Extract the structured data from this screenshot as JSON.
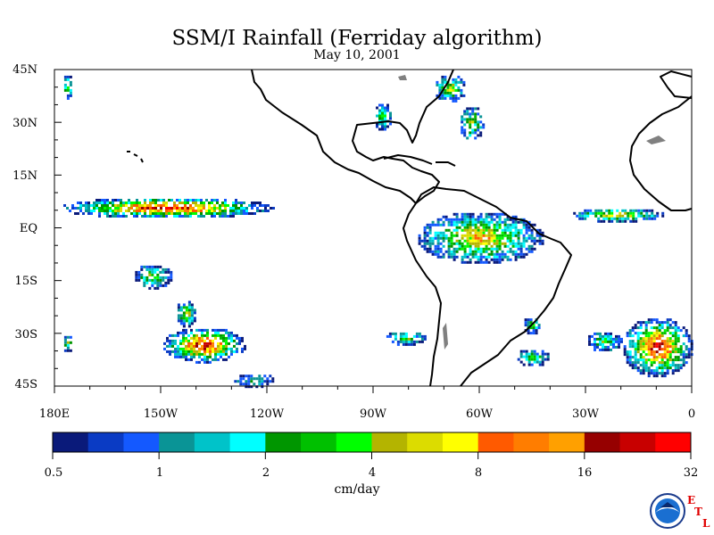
{
  "title": "SSM/I Rainfall (Ferriday algorithm)",
  "subtitle": "May 10, 2001",
  "chart_data": {
    "type": "heatmap",
    "title": "SSM/I Rainfall (Ferriday algorithm)",
    "subtitle": "May 10, 2001",
    "xlim": [
      -180,
      0
    ],
    "ylim": [
      -45,
      45
    ],
    "lat_ticks": [
      "45N",
      "30N",
      "15N",
      "EQ",
      "15S",
      "30S",
      "45S"
    ],
    "lon_ticks": [
      "180E",
      "150W",
      "120W",
      "90W",
      "60W",
      "30W",
      "0"
    ],
    "colorbar": {
      "units": "cm/day",
      "tick_labels": [
        "0.5",
        "1",
        "2",
        "4",
        "8",
        "16",
        "32"
      ],
      "colors": [
        "#0a1a7a",
        "#0a3bc4",
        "#1459ff",
        "#0a9496",
        "#00c3c9",
        "#00ffff",
        "#009600",
        "#00c000",
        "#00ff00",
        "#b4b400",
        "#dcdc00",
        "#ffff00",
        "#ff5a00",
        "#ff7d00",
        "#ffa000",
        "#960000",
        "#c80000",
        "#ff0000"
      ]
    },
    "rain_regions": [
      {
        "lon_min": -179,
        "lon_max": -118,
        "lat_min": 3,
        "lat_max": 9,
        "peak": 17
      },
      {
        "lon_min": -178,
        "lon_max": -175,
        "lat_min": 37,
        "lat_max": 44,
        "peak": 10
      },
      {
        "lon_min": -158,
        "lon_max": -147,
        "lat_min": -17,
        "lat_max": -10,
        "peak": 9
      },
      {
        "lon_min": -178,
        "lon_max": -175,
        "lat_min": -35,
        "lat_max": -30,
        "peak": 9
      },
      {
        "lon_min": -150,
        "lon_max": -126,
        "lat_min": -38,
        "lat_max": -28,
        "peak": 17
      },
      {
        "lon_min": -146,
        "lon_max": -140,
        "lat_min": -28,
        "lat_max": -20,
        "peak": 10
      },
      {
        "lon_min": -130,
        "lon_max": -118,
        "lat_min": -45,
        "lat_max": -41,
        "peak": 5
      },
      {
        "lon_min": -87,
        "lon_max": -75,
        "lat_min": -33,
        "lat_max": -29,
        "peak": 9
      },
      {
        "lon_min": -90,
        "lon_max": -85,
        "lat_min": 28,
        "lat_max": 36,
        "peak": 9
      },
      {
        "lon_min": -73,
        "lon_max": -64,
        "lat_min": 36,
        "lat_max": 44,
        "peak": 10
      },
      {
        "lon_min": -66,
        "lon_max": -59,
        "lat_min": 25,
        "lat_max": 35,
        "peak": 10
      },
      {
        "lon_min": -78,
        "lon_max": -42,
        "lat_min": -10,
        "lat_max": 5,
        "peak": 12
      },
      {
        "lon_min": -35,
        "lon_max": -8,
        "lat_min": 2,
        "lat_max": 6,
        "peak": 12
      },
      {
        "lon_min": -48,
        "lon_max": -43,
        "lat_min": -30,
        "lat_max": -25,
        "peak": 8
      },
      {
        "lon_min": -50,
        "lon_max": -40,
        "lat_min": -39,
        "lat_max": -34,
        "peak": 8
      },
      {
        "lon_min": -30,
        "lon_max": -20,
        "lat_min": -35,
        "lat_max": -29,
        "peak": 8
      },
      {
        "lon_min": -20,
        "lon_max": 0,
        "lat_min": -42,
        "lat_max": -25,
        "peak": 17
      }
    ]
  },
  "logo": {
    "name": "NOAA",
    "etl_letters": [
      "E",
      "T",
      "L"
    ],
    "accent": "#e00000"
  }
}
